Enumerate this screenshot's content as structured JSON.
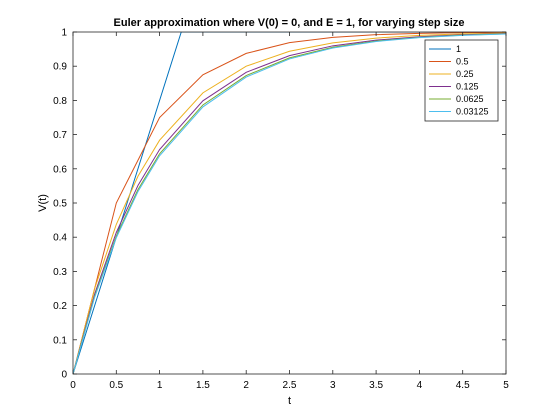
{
  "chart_data": {
    "type": "line",
    "title": "Euler approximation where V(0) = 0, and E = 1, for varying step size",
    "xlabel": "t",
    "ylabel": "V(t)",
    "xlim": [
      0,
      5
    ],
    "ylim": [
      0,
      1
    ],
    "xticks": [
      "0",
      "0.5",
      "1",
      "1.5",
      "2",
      "2.5",
      "3",
      "3.5",
      "4",
      "4.5",
      "5"
    ],
    "yticks": [
      "0",
      "0.1",
      "0.2",
      "0.3",
      "0.4",
      "0.5",
      "0.6",
      "0.7",
      "0.8",
      "0.9",
      "1"
    ],
    "grid": false,
    "legend_position": "top-right",
    "series": [
      {
        "name": "1",
        "color": "#0072BD",
        "x": [
          0,
          1.25,
          5
        ],
        "y": [
          0,
          1,
          1
        ]
      },
      {
        "name": "0.5",
        "color": "#D95319",
        "x": [
          0,
          0.5,
          1,
          1.5,
          2,
          2.5,
          3,
          3.5,
          4,
          4.5,
          5
        ],
        "y": [
          0,
          0.5,
          0.75,
          0.875,
          0.9375,
          0.9688,
          0.9844,
          0.9922,
          0.9961,
          0.998,
          0.999
        ]
      },
      {
        "name": "0.25",
        "color": "#EDB120",
        "x": [
          0,
          0.25,
          0.5,
          0.75,
          1,
          1.5,
          2,
          2.5,
          3,
          3.5,
          4,
          4.5,
          5
        ],
        "y": [
          0,
          0.25,
          0.4375,
          0.5781,
          0.6836,
          0.822,
          0.9,
          0.9437,
          0.9683,
          0.9822,
          0.99,
          0.9944,
          0.9968
        ]
      },
      {
        "name": "0.125",
        "color": "#7E2F8E",
        "x": [
          0,
          0.25,
          0.5,
          0.75,
          1,
          1.5,
          2,
          2.5,
          3,
          3.5,
          4,
          4.5,
          5
        ],
        "y": [
          0,
          0.2344,
          0.4138,
          0.5511,
          0.6564,
          0.7989,
          0.8822,
          0.931,
          0.9596,
          0.9763,
          0.9861,
          0.9919,
          0.9952
        ]
      },
      {
        "name": "0.0625",
        "color": "#77AC30",
        "x": [
          0,
          0.25,
          0.5,
          0.75,
          1,
          1.5,
          2,
          2.5,
          3,
          3.5,
          4,
          4.5,
          5
        ],
        "y": [
          0,
          0.2275,
          0.4034,
          0.539,
          0.6439,
          0.7866,
          0.8727,
          0.9244,
          0.9553,
          0.9736,
          0.9844,
          0.9908,
          0.9946
        ]
      },
      {
        "name": "0.03125",
        "color": "#4DBEEE",
        "x": [
          0,
          0.25,
          0.5,
          0.75,
          1,
          1.5,
          2,
          2.5,
          3,
          3.5,
          4,
          4.5,
          5
        ],
        "y": [
          0,
          0.2243,
          0.3984,
          0.5333,
          0.638,
          0.7809,
          0.8682,
          0.9213,
          0.9533,
          0.9723,
          0.9836,
          0.9903,
          0.9943
        ]
      }
    ]
  }
}
